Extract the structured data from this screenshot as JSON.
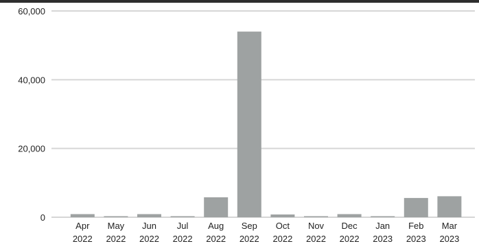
{
  "chart_data": {
    "type": "bar",
    "categories": [
      [
        "Apr",
        "2022"
      ],
      [
        "May",
        "2022"
      ],
      [
        "Jun",
        "2022"
      ],
      [
        "Jul",
        "2022"
      ],
      [
        "Aug",
        "2022"
      ],
      [
        "Sep",
        "2022"
      ],
      [
        "Oct",
        "2022"
      ],
      [
        "Nov",
        "2022"
      ],
      [
        "Dec",
        "2022"
      ],
      [
        "Jan",
        "2023"
      ],
      [
        "Feb",
        "2023"
      ],
      [
        "Mar",
        "2023"
      ]
    ],
    "values": [
      900,
      200,
      900,
      300,
      5800,
      54000,
      800,
      100,
      900,
      100,
      5600,
      6100
    ],
    "ylim": [
      0,
      60000
    ],
    "yticks": [
      {
        "value": 0,
        "label": "0"
      },
      {
        "value": 20000,
        "label": "20,000"
      },
      {
        "value": 40000,
        "label": "40,000"
      },
      {
        "value": 60000,
        "label": "60,000"
      }
    ],
    "grid": true,
    "colors": {
      "bar": "#9ea2a2",
      "grid": "#d6d6d6",
      "text": "#222222"
    }
  }
}
